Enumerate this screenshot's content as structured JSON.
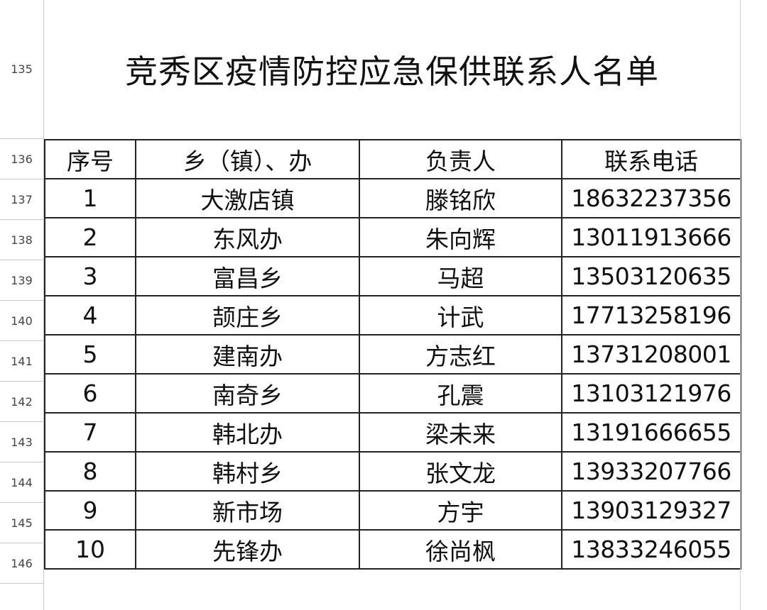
{
  "title": "竞秀区疫情防控应急保供联系人名单",
  "row_numbers": [
    "135",
    "136",
    "137",
    "138",
    "139",
    "140",
    "141",
    "142",
    "143",
    "144",
    "145",
    "146"
  ],
  "headers": [
    "序号",
    "乡（镇）、办",
    "负责人",
    "联系电话"
  ],
  "rows": [
    [
      "1",
      "大激店镇",
      "滕铭欣",
      "18632237356"
    ],
    [
      "2",
      "东风办",
      "朱向辉",
      "13011913666"
    ],
    [
      "3",
      "富昌乡",
      "马超",
      "13503120635"
    ],
    [
      "4",
      "颉庄乡",
      "计武",
      "17713258196"
    ],
    [
      "5",
      "建南办",
      "方志红",
      "13731208001"
    ],
    [
      "6",
      "南奇乡",
      "孔震",
      "13103121976"
    ],
    [
      "7",
      "韩北办",
      "梁未来",
      "13191666655"
    ],
    [
      "8",
      "韩村乡",
      "张文龙",
      "13933207766"
    ],
    [
      "9",
      "新市场",
      "方宇",
      "13903129327"
    ],
    [
      "10",
      "先锋办",
      "徐尚枫",
      "13833246055"
    ]
  ]
}
